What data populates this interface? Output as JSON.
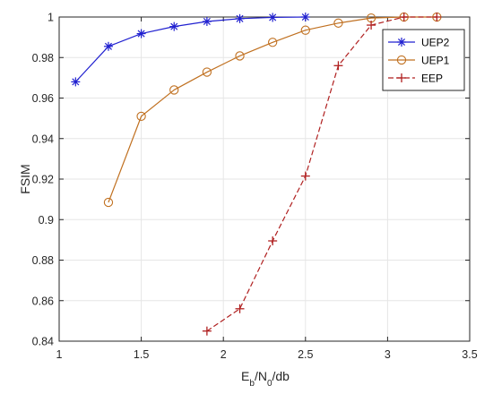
{
  "chart_data": {
    "type": "line",
    "xlabel": "E_b/N_0/db",
    "xlabel_parts": {
      "main1": "E",
      "sub1": "b",
      "main2": "/N",
      "sub2": "0",
      "tail": "/db"
    },
    "ylabel": "FSIM",
    "xlim": [
      1,
      3.5
    ],
    "ylim": [
      0.84,
      1.0
    ],
    "x_ticks": [
      "1",
      "1.5",
      "2",
      "2.5",
      "3",
      "3.5"
    ],
    "y_ticks": [
      "0.84",
      "0.86",
      "0.88",
      "0.9",
      "0.92",
      "0.94",
      "0.96",
      "0.98",
      "1"
    ],
    "grid": true,
    "legend_position": "top-right",
    "series": [
      {
        "name": "UEP2",
        "color": "#2020d0",
        "line_style": "solid",
        "marker": "asterisk",
        "x": [
          1.1,
          1.3,
          1.5,
          1.7,
          1.9,
          2.1,
          2.3,
          2.5
        ],
        "y": [
          0.968,
          0.9855,
          0.9918,
          0.9953,
          0.9978,
          0.9992,
          0.9998,
          1.0
        ]
      },
      {
        "name": "UEP1",
        "color": "#c07020",
        "line_style": "solid",
        "marker": "circle",
        "x": [
          1.3,
          1.5,
          1.7,
          1.9,
          2.1,
          2.3,
          2.5,
          2.7,
          2.9,
          3.1,
          3.3
        ],
        "y": [
          0.9085,
          0.951,
          0.964,
          0.9728,
          0.9808,
          0.9875,
          0.9935,
          0.997,
          0.9995,
          1.0,
          1.0
        ]
      },
      {
        "name": "EEP",
        "color": "#b02020",
        "line_style": "dashed",
        "marker": "plus",
        "x": [
          1.9,
          2.1,
          2.3,
          2.5,
          2.7,
          2.9,
          3.1,
          3.3
        ],
        "y": [
          0.845,
          0.856,
          0.8895,
          0.9215,
          0.976,
          0.996,
          1.0,
          1.0
        ]
      }
    ]
  }
}
